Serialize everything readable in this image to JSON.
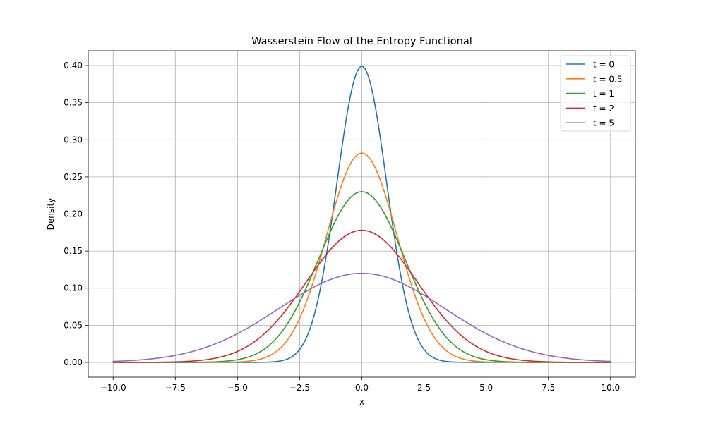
{
  "chart_data": {
    "type": "line",
    "title": "Wasserstein Flow of the Entropy Functional",
    "xlabel": "x",
    "ylabel": "Density",
    "xlim": [
      -11,
      11
    ],
    "ylim": [
      -0.02,
      0.42
    ],
    "xticks": [
      -10,
      -7.5,
      -5,
      -2.5,
      0,
      2.5,
      5,
      7.5,
      10
    ],
    "xtick_labels": [
      "−10.0",
      "−7.5",
      "−5.0",
      "−2.5",
      "0.0",
      "2.5",
      "5.0",
      "7.5",
      "10.0"
    ],
    "yticks": [
      0,
      0.05,
      0.1,
      0.15,
      0.2,
      0.25,
      0.3,
      0.35,
      0.4
    ],
    "ytick_labels": [
      "0.00",
      "0.05",
      "0.10",
      "0.15",
      "0.20",
      "0.25",
      "0.30",
      "0.35",
      "0.40"
    ],
    "grid": true,
    "legend_position": "top-right",
    "x_range": [
      -10,
      10
    ],
    "series": [
      {
        "name": "t = 0",
        "color": "#1f77b4",
        "t": 0,
        "peak": 0.399
      },
      {
        "name": "t = 0.5",
        "color": "#ff7f0e",
        "t": 0.5,
        "peak": 0.282
      },
      {
        "name": "t = 1",
        "color": "#2ca02c",
        "t": 1,
        "peak": 0.23
      },
      {
        "name": "t = 2",
        "color": "#d62728",
        "t": 2,
        "peak": 0.178
      },
      {
        "name": "t = 5",
        "color": "#9467bd",
        "t": 5,
        "peak": 0.12
      }
    ]
  }
}
